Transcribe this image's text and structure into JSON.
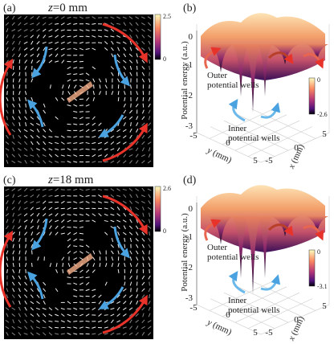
{
  "panels": [
    {
      "label": "(a)",
      "title_var": "z",
      "title_rest": "=0 mm",
      "colorbar": [
        "2.5",
        "0"
      ]
    },
    {
      "label": "(b)",
      "axis_label": "Potential energy (a.u.)",
      "zticks": [
        "0",
        "-1",
        "-2",
        "-3"
      ],
      "colorbar": [
        "0",
        "-2.6"
      ],
      "outer": [
        "Outer",
        "potential wells"
      ],
      "inner": [
        "Inner",
        "potential wells"
      ],
      "y_label_var": "y",
      "x_label_var": "x",
      "axis_unit": " (mm)",
      "yticks": [
        "-5",
        "0",
        "5"
      ],
      "xticks": [
        "-5",
        "0",
        "5"
      ]
    },
    {
      "label": "(c)",
      "title_var": "z",
      "title_rest": "=18 mm",
      "colorbar": [
        "2.6",
        "0"
      ]
    },
    {
      "label": "(d)",
      "axis_label": "Potential energy (a.u.)",
      "zticks": [
        "0",
        "-1",
        "-2",
        "-3"
      ],
      "colorbar": [
        "0",
        "-3.1"
      ],
      "outer": [
        "Outer",
        "potential wells"
      ],
      "inner": [
        "Inner",
        "potential wells"
      ],
      "y_label_var": "y",
      "x_label_var": "x",
      "axis_unit": " (mm)",
      "yticks": [
        "-5",
        "0",
        "5"
      ],
      "xticks": [
        "-5",
        "0",
        "5"
      ]
    }
  ]
}
